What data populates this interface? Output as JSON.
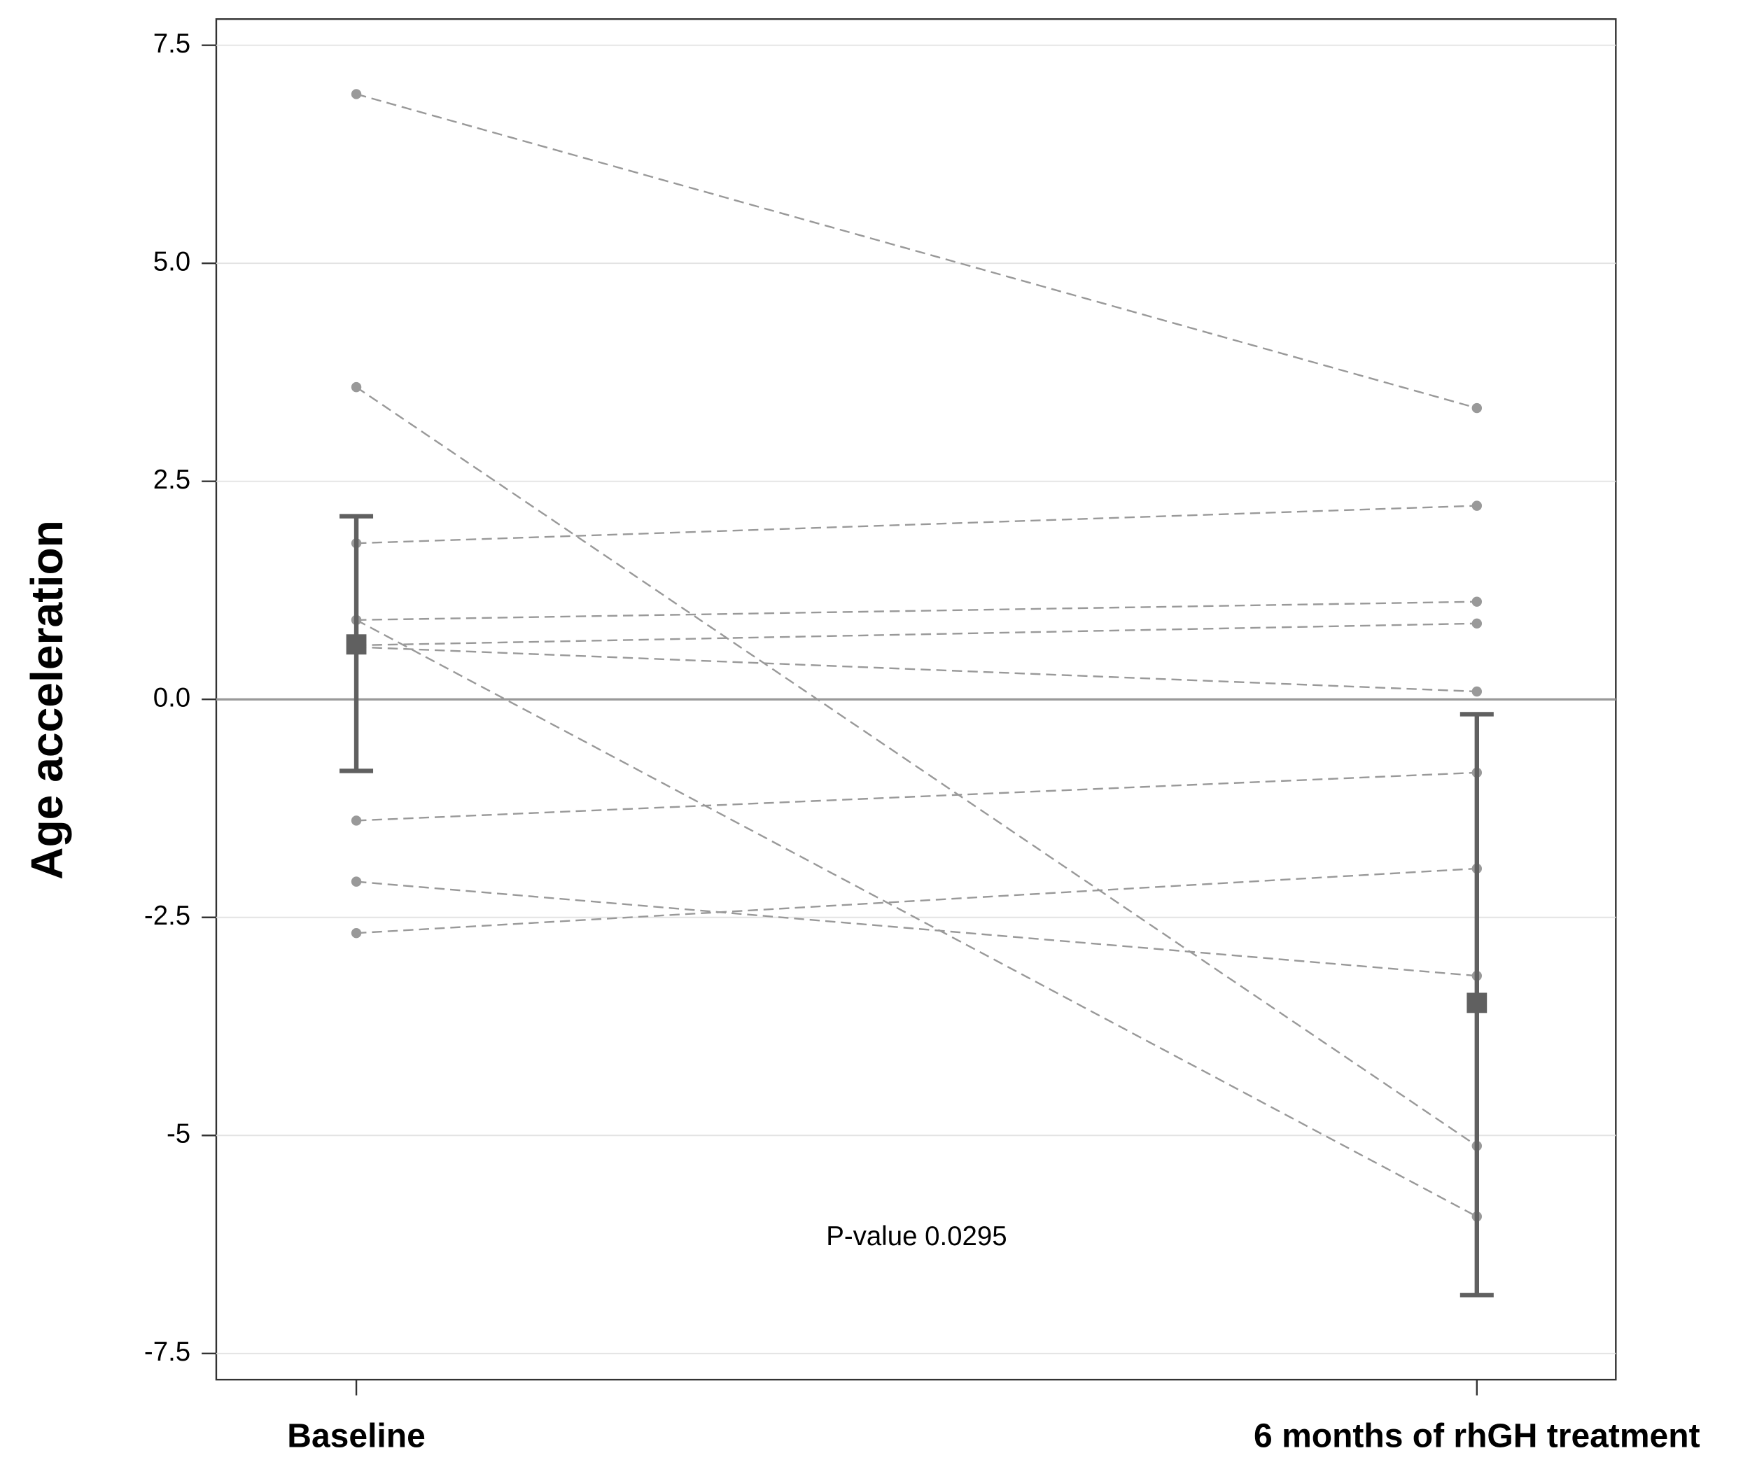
{
  "chart_data": {
    "type": "paired-dot",
    "y_label": "Age acceleration",
    "categories": [
      "Baseline",
      "6 months of rhGH treatment"
    ],
    "subjects": [
      {
        "values": [
          6.94,
          3.34
        ]
      },
      {
        "values": [
          3.58,
          -5.12
        ]
      },
      {
        "values": [
          1.79,
          2.22
        ]
      },
      {
        "values": [
          0.91,
          1.12
        ]
      },
      {
        "values": [
          0.62,
          0.87
        ]
      },
      {
        "values": [
          0.6,
          0.09
        ]
      },
      {
        "values": [
          0.91,
          -5.93
        ]
      },
      {
        "values": [
          -1.39,
          -0.84
        ]
      },
      {
        "values": [
          -2.09,
          -3.17
        ]
      },
      {
        "values": [
          -2.68,
          -1.94
        ]
      }
    ],
    "subject_color": "#999999",
    "mean": {
      "values": [
        0.63,
        -3.48
      ],
      "lower": [
        -0.82,
        -6.83
      ],
      "upper": [
        2.1,
        -0.17
      ],
      "color": "#606060"
    },
    "annotation": "P-value 0.0295",
    "ylim": [
      -7.8,
      7.8
    ],
    "yticks": [
      -7.5,
      -5,
      -2.5,
      {
        "value": 0,
        "label": "0.0"
      },
      2.5,
      {
        "value": 5,
        "label": "5.0"
      },
      7.5
    ],
    "grid": true
  }
}
